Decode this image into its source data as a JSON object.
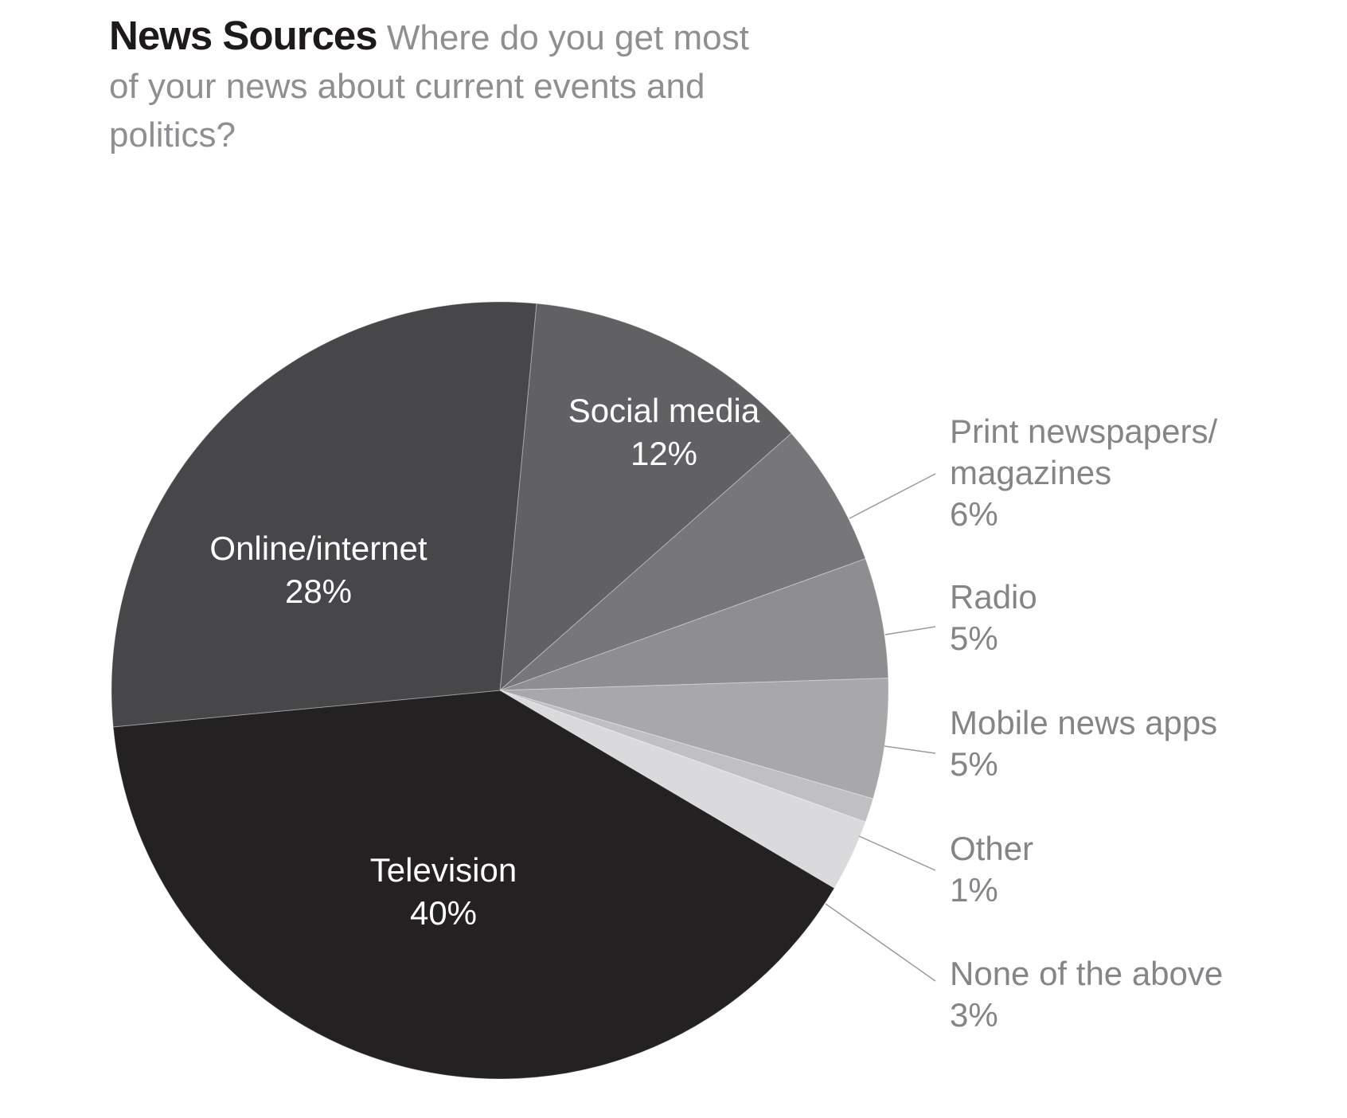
{
  "chart_data": {
    "type": "pie",
    "title": "News Sources",
    "subtitle": "Where do you get most of your news about current events and politics?",
    "slices": [
      {
        "label": "Social media",
        "label_lines": [
          "Social media"
        ],
        "value_label": "12%",
        "value": 12,
        "color": "#616163",
        "label_placement": "inside"
      },
      {
        "label": "Print newspapers/ magazines",
        "label_lines": [
          "Print newspapers/",
          "magazines"
        ],
        "value_label": "6%",
        "value": 6,
        "color": "#77777a",
        "label_placement": "outside"
      },
      {
        "label": "Radio",
        "label_lines": [
          "Radio"
        ],
        "value_label": "5%",
        "value": 5,
        "color": "#8e8e91",
        "label_placement": "outside"
      },
      {
        "label": "Mobile news apps",
        "label_lines": [
          "Mobile news apps"
        ],
        "value_label": "5%",
        "value": 5,
        "color": "#a8a8ab",
        "label_placement": "outside"
      },
      {
        "label": "Other",
        "label_lines": [
          "Other"
        ],
        "value_label": "1%",
        "value": 1,
        "color": "#c0c0c3",
        "label_placement": "outside"
      },
      {
        "label": "None of the above",
        "label_lines": [
          "None of the above"
        ],
        "value_label": "3%",
        "value": 3,
        "color": "#dadadc",
        "label_placement": "outside"
      },
      {
        "label": "Television",
        "label_lines": [
          "Television"
        ],
        "value_label": "40%",
        "value": 40,
        "color": "#242122",
        "label_placement": "inside"
      },
      {
        "label": "Online/internet",
        "label_lines": [
          "Online/internet"
        ],
        "value_label": "28%",
        "value": 28,
        "color": "#474648",
        "label_placement": "inside"
      }
    ],
    "start": "top",
    "direction": "clockwise",
    "legend": "none"
  }
}
